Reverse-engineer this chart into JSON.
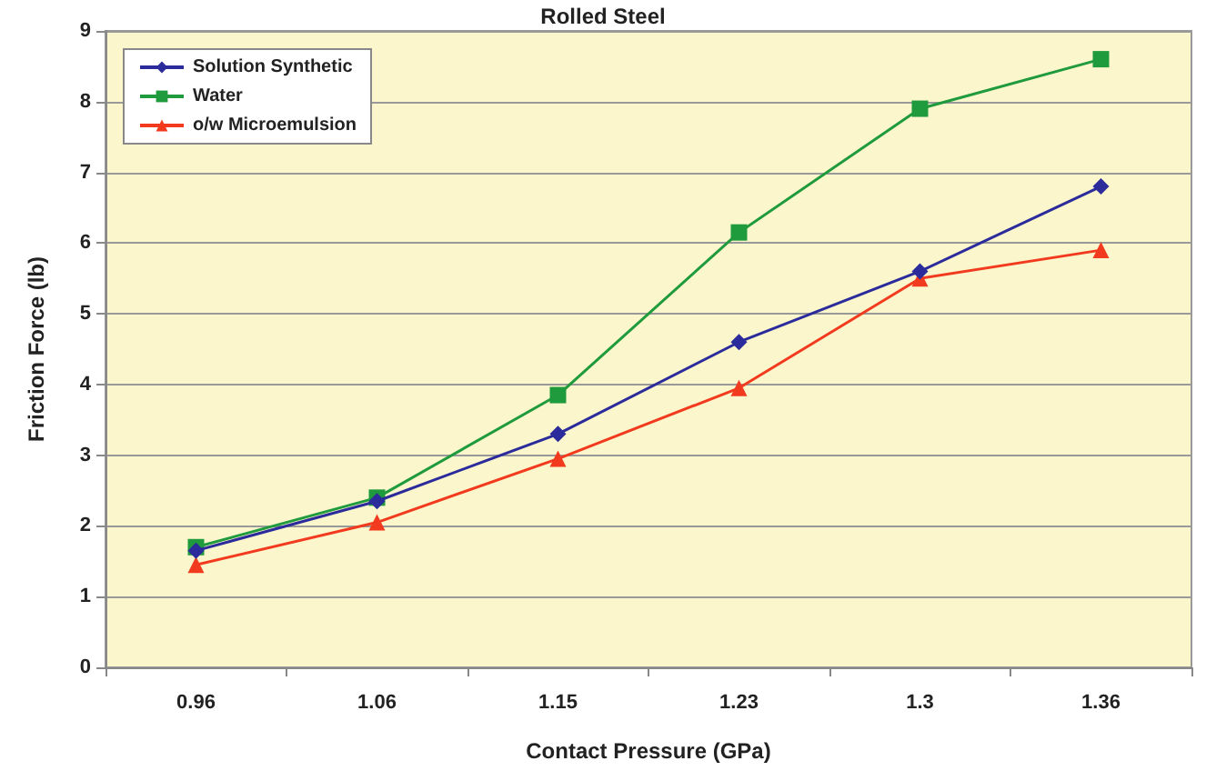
{
  "chart_data": {
    "type": "line",
    "title": "Rolled Steel",
    "xlabel": "Contact Pressure (GPa)",
    "ylabel": "Friction Force (lb)",
    "categories": [
      "0.96",
      "1.06",
      "1.15",
      "1.23",
      "1.3",
      "1.36"
    ],
    "series": [
      {
        "name": "Solution Synthetic",
        "color": "#2b2b9c",
        "marker": "diamond",
        "values": [
          1.65,
          2.35,
          3.3,
          4.6,
          5.6,
          6.8
        ]
      },
      {
        "name": "Water",
        "color": "#1f9a3c",
        "marker": "square",
        "values": [
          1.7,
          2.4,
          3.85,
          6.15,
          7.9,
          8.6
        ]
      },
      {
        "name": "o/w Microemulsion",
        "color": "#f23a1e",
        "marker": "triangle",
        "values": [
          1.45,
          2.05,
          2.95,
          3.95,
          5.5,
          5.9
        ]
      }
    ],
    "ylim": [
      0,
      9
    ],
    "yticks": [
      0,
      1,
      2,
      3,
      4,
      5,
      6,
      7,
      8,
      9
    ],
    "grid": "y",
    "legend": "top left"
  }
}
